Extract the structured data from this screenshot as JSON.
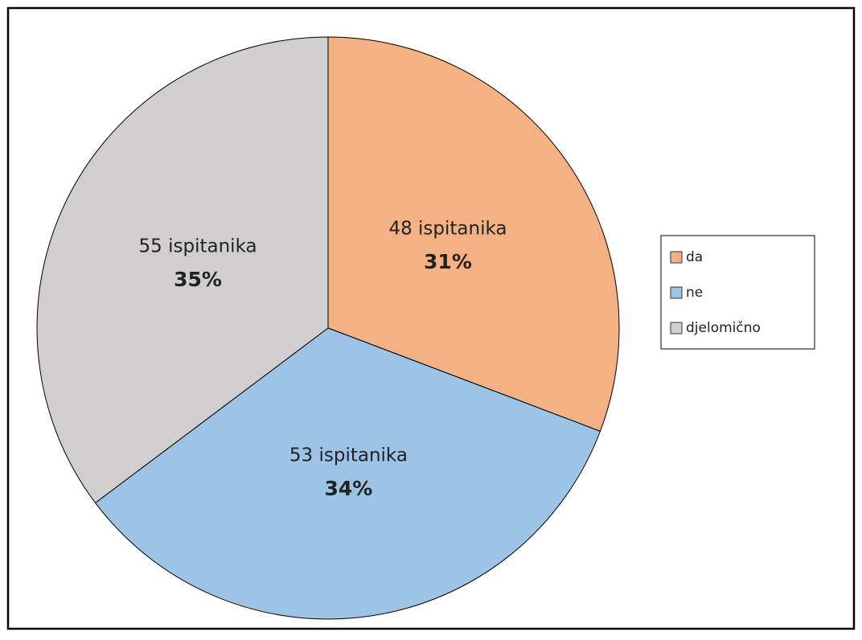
{
  "chart_data": {
    "type": "pie",
    "categories": [
      "da",
      "ne",
      "djelomično"
    ],
    "values": [
      48,
      53,
      55
    ],
    "value_labels": [
      "48 ispitanika",
      "53 ispitanika",
      "55 ispitanika"
    ],
    "percent_labels": [
      "31%",
      "34%",
      "35%"
    ],
    "colors": [
      "#f4b183",
      "#9dc3e6",
      "#d0cece"
    ],
    "legend": "right"
  }
}
